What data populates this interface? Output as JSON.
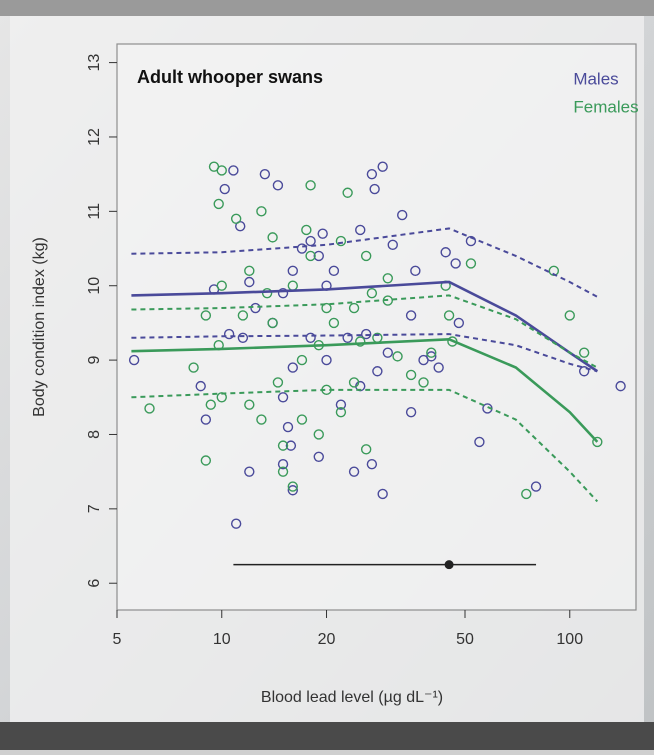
{
  "chart_data": {
    "type": "scatter",
    "title": "Adult whooper swans",
    "x_label": "Blood lead level (µg dL⁻¹)",
    "y_label": "Body condition index (kg)",
    "xscale": "log",
    "xlim": [
      5,
      155
    ],
    "ylim": [
      5.64,
      13.25
    ],
    "xticks": [
      5,
      10,
      20,
      50,
      100
    ],
    "yticks": [
      6,
      7,
      8,
      9,
      10,
      11,
      12,
      13
    ],
    "legend": "top-right",
    "series": [
      {
        "name": "Males",
        "color": "#4a4a9a",
        "x": [
          10.8,
          10.2,
          11.3,
          13.3,
          14.5,
          12,
          10.5,
          9.5,
          11.5,
          12.5,
          14,
          15,
          16,
          17,
          18,
          19,
          19.5,
          21,
          23,
          25,
          27,
          29,
          27.5,
          33,
          31,
          36,
          35,
          30,
          28,
          25,
          22,
          20,
          18,
          16,
          15,
          15.5,
          15.8,
          15,
          16,
          19,
          24,
          27,
          29,
          12,
          11,
          35,
          40,
          44,
          47,
          52,
          48,
          55,
          58,
          80,
          140,
          110,
          9,
          5.6,
          8.7,
          38,
          42,
          26,
          20
        ],
        "values": [
          11.55,
          11.3,
          10.8,
          11.5,
          11.35,
          10.05,
          9.35,
          9.95,
          9.3,
          9.7,
          9.5,
          9.9,
          10.2,
          10.5,
          10.6,
          10.4,
          10.7,
          10.2,
          9.3,
          10.75,
          11.5,
          11.6,
          11.3,
          10.95,
          10.55,
          10.2,
          9.6,
          9.1,
          8.85,
          8.65,
          8.4,
          9.0,
          9.3,
          8.9,
          8.5,
          8.1,
          7.85,
          7.6,
          7.25,
          7.7,
          7.5,
          7.6,
          7.2,
          7.5,
          6.8,
          8.3,
          9.05,
          10.45,
          10.3,
          10.6,
          9.5,
          7.9,
          8.35,
          7.3,
          8.65,
          8.85,
          8.2,
          9.0,
          8.65,
          9.0,
          8.9,
          9.35,
          10.0
        ]
      },
      {
        "name": "Females",
        "color": "#3a9a5a",
        "x": [
          9.5,
          10,
          9.8,
          13,
          11,
          14,
          17.5,
          18,
          23,
          22,
          18,
          26,
          12,
          10,
          9,
          9.8,
          10,
          9.3,
          8.3,
          6.2,
          9,
          12,
          13,
          14.5,
          15,
          15,
          16,
          17,
          19,
          20,
          22,
          24,
          26,
          17,
          19,
          21,
          24,
          27,
          30,
          25,
          28,
          32,
          35,
          38,
          40,
          46,
          45,
          52,
          90,
          100,
          110,
          120,
          75,
          14,
          13.5,
          16,
          20,
          30,
          44,
          11.5
        ],
        "values": [
          11.6,
          11.55,
          11.1,
          11.0,
          10.9,
          10.65,
          10.75,
          11.35,
          11.25,
          10.6,
          10.4,
          10.4,
          10.2,
          10.0,
          9.6,
          9.2,
          8.5,
          8.4,
          8.9,
          8.35,
          7.65,
          8.4,
          8.2,
          8.7,
          7.85,
          7.5,
          7.3,
          8.2,
          8.0,
          8.6,
          8.3,
          8.7,
          7.8,
          9.0,
          9.2,
          9.5,
          9.7,
          9.9,
          9.8,
          9.25,
          9.3,
          9.05,
          8.8,
          8.7,
          9.1,
          9.25,
          9.6,
          10.3,
          10.2,
          9.6,
          9.1,
          7.9,
          7.2,
          9.5,
          9.9,
          10.0,
          9.7,
          10.1,
          10.0,
          9.6
        ]
      }
    ],
    "fits": [
      {
        "color": "#4a4a9a",
        "style": "solid",
        "x": [
          5.5,
          10,
          20,
          45,
          70,
          100,
          120
        ],
        "values": [
          9.87,
          9.9,
          9.95,
          10.05,
          9.6,
          9.1,
          8.85
        ]
      },
      {
        "color": "#4a4a9a",
        "style": "dashed",
        "x": [
          5.5,
          10,
          20,
          45,
          70,
          100,
          120
        ],
        "values": [
          10.43,
          10.45,
          10.55,
          10.77,
          10.4,
          10.05,
          9.85
        ]
      },
      {
        "color": "#4a4a9a",
        "style": "dashed",
        "x": [
          5.5,
          10,
          20,
          45,
          70,
          100,
          120
        ],
        "values": [
          9.3,
          9.32,
          9.33,
          9.35,
          9.2,
          8.95,
          8.85
        ]
      },
      {
        "color": "#3a9a5a",
        "style": "solid",
        "x": [
          5.5,
          10,
          20,
          45,
          70,
          100,
          120
        ],
        "values": [
          9.12,
          9.15,
          9.2,
          9.28,
          8.9,
          8.3,
          7.9
        ]
      },
      {
        "color": "#3a9a5a",
        "style": "dashed",
        "x": [
          5.5,
          10,
          20,
          45,
          70,
          100,
          120
        ],
        "values": [
          9.68,
          9.7,
          9.75,
          9.87,
          9.55,
          9.1,
          8.9
        ]
      },
      {
        "color": "#3a9a5a",
        "style": "dashed",
        "x": [
          5.5,
          10,
          20,
          45,
          70,
          100,
          120
        ],
        "values": [
          8.5,
          8.55,
          8.6,
          8.6,
          8.2,
          7.5,
          7.1
        ]
      }
    ],
    "breakpoint": {
      "value": 45,
      "lower": 10.8,
      "upper": 80,
      "y": 6.25,
      "color": "#222222"
    }
  }
}
